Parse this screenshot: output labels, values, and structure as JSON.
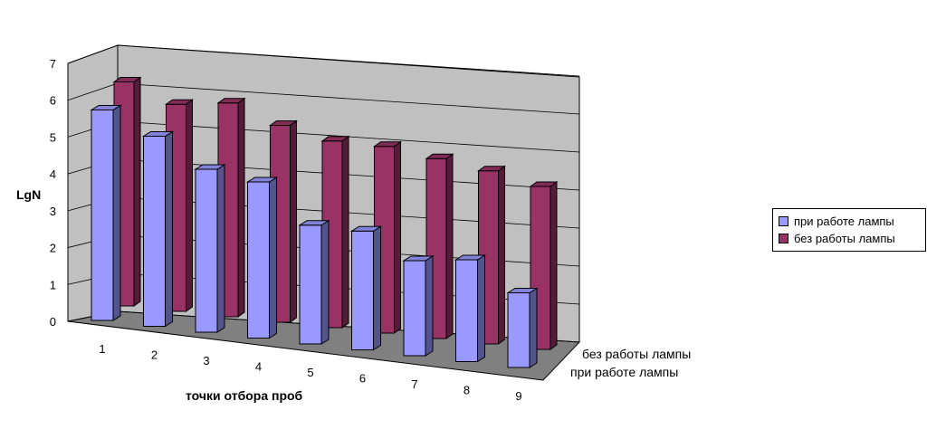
{
  "chart_data": {
    "type": "bar",
    "title": "",
    "xlabel": "точки отбора проб",
    "ylabel": "LgN",
    "ylim": [
      0,
      7
    ],
    "y_ticks": [
      "0",
      "1",
      "2",
      "3",
      "4",
      "5",
      "6",
      "7"
    ],
    "categories": [
      "1",
      "2",
      "3",
      "4",
      "5",
      "6",
      "7",
      "8",
      "9"
    ],
    "series": [
      {
        "name": "при работе лампы",
        "values": [
          6.2,
          5.6,
          4.8,
          4.6,
          3.5,
          3.5,
          2.8,
          3.0,
          2.2
        ],
        "color": "#9999FF"
      },
      {
        "name": "без работы лампы",
        "values": [
          6.6,
          6.1,
          6.3,
          5.8,
          5.5,
          5.5,
          5.3,
          5.1,
          4.8
        ],
        "color": "#993366"
      }
    ],
    "legend_position": "right",
    "grid": true,
    "three_d": true
  }
}
